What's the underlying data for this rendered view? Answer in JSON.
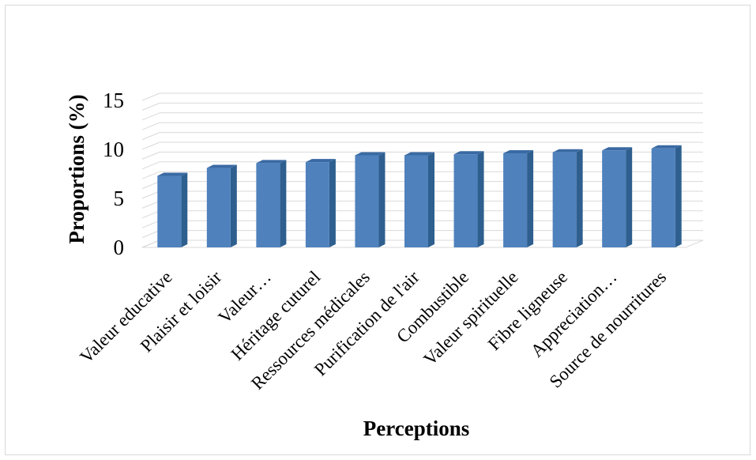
{
  "chart_data": {
    "type": "bar",
    "title": "",
    "xlabel": "Perceptions",
    "ylabel": "Proportions (%)",
    "ylim": [
      0,
      15
    ],
    "yticks": [
      0,
      5,
      10,
      15
    ],
    "grid": true,
    "categories": [
      "Valeur educative",
      "Plaisir et loisir",
      "Valeur…",
      "Héritage cuturel",
      "Ressources médicales",
      "Purification de l'air",
      "Combustible",
      "Valeur spirituelle",
      "Fibre ligneuse",
      "Appreciation…",
      "Source de nourritures"
    ],
    "values": [
      7.3,
      8.1,
      8.6,
      8.7,
      9.4,
      9.4,
      9.5,
      9.6,
      9.7,
      9.9,
      10.1
    ],
    "colors": {
      "bar_front": "#4f81bd",
      "bar_side": "#2e5f8f",
      "bar_top": "#3a6aa3",
      "grid": "#d9d9d9"
    }
  }
}
